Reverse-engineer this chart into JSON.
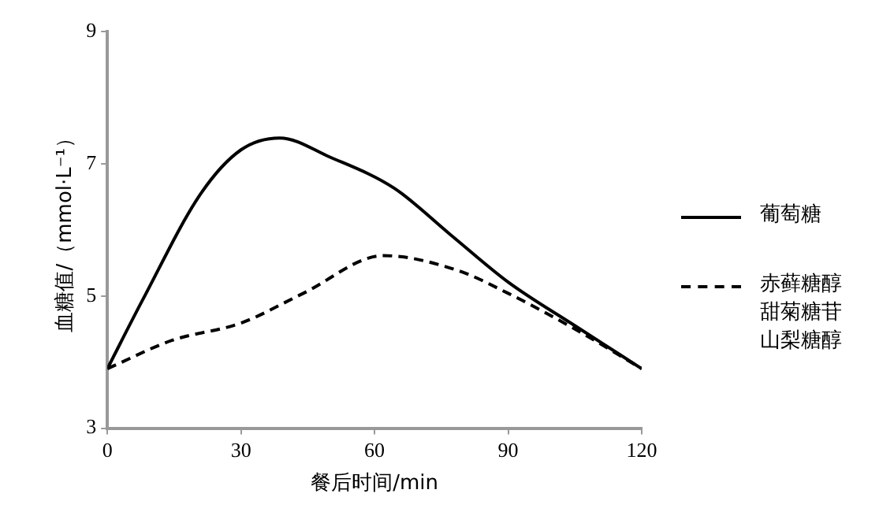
{
  "chart_data": {
    "type": "line",
    "xlabel": "餐后时间/min",
    "ylabel": "血糖值/（mmol·L⁻¹）",
    "xlim": [
      0,
      120
    ],
    "xticks": [
      0,
      30,
      60,
      90,
      120
    ],
    "ylim": [
      3,
      9
    ],
    "yticks": [
      3,
      5,
      7,
      9
    ],
    "grid": false,
    "legend": "right",
    "marker": "none",
    "series": [
      {
        "name": "葡萄糖",
        "color": "#000000",
        "line_style": "solid",
        "x": [
          0,
          8,
          21,
          30,
          38.7,
          50,
          64.4,
          77,
          90,
          105,
          120
        ],
        "values": [
          3.9,
          4.95,
          6.55,
          7.21,
          7.39,
          7.1,
          6.63,
          5.93,
          5.21,
          4.55,
          3.9
        ]
      },
      {
        "name": "赤藓糖醇甜菊糖苷山梨糖醇",
        "color": "#000000",
        "line_style": "dashed",
        "x": [
          0,
          14.6,
          30,
          44,
          62,
          78.5,
          90,
          105,
          120
        ],
        "values": [
          3.9,
          4.33,
          4.59,
          5.04,
          5.61,
          5.39,
          5.04,
          4.5,
          3.9
        ]
      }
    ]
  }
}
